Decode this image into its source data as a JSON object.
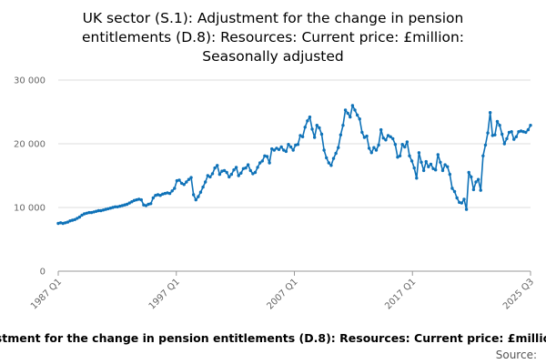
{
  "title_lines": [
    "UK sector (S.1): Adjustment for the change in pension",
    "entitlements (D.8): Resources: Current price: £million:",
    "Seasonally adjusted"
  ],
  "footer": {
    "xlabel": "stment for the change in pension entitlements (D.8): Resources: Current price: £millio",
    "source": "Source:"
  },
  "colors": {
    "line": "#0f72b8",
    "grid": "#dcdcdc",
    "axis": "#999999"
  },
  "chart_data": {
    "type": "line",
    "title": "UK sector (S.1): Adjustment for the change in pension entitlements (D.8): Resources: Current price: £million: Seasonally adjusted",
    "x_ticks": [
      "1987 Q1",
      "1997 Q1",
      "2007 Q1",
      "2017 Q1",
      "2025 Q3"
    ],
    "y_ticks": [
      "0",
      "10 000",
      "20 000",
      "30 000"
    ],
    "ylim": [
      0,
      30000
    ],
    "grid": true,
    "legend": "none",
    "values": [
      7500,
      7600,
      7500,
      7600,
      7700,
      7900,
      8000,
      8100,
      8300,
      8500,
      8800,
      9000,
      9100,
      9200,
      9200,
      9300,
      9400,
      9500,
      9500,
      9600,
      9700,
      9800,
      9900,
      10000,
      10100,
      10100,
      10200,
      10300,
      10400,
      10500,
      10700,
      10900,
      11100,
      11200,
      11300,
      11200,
      10400,
      10300,
      10500,
      10600,
      11500,
      11900,
      12000,
      11900,
      12100,
      12200,
      12300,
      12200,
      12600,
      13000,
      14200,
      14300,
      13800,
      13600,
      14000,
      14400,
      14700,
      12000,
      11200,
      11700,
      12400,
      13200,
      14000,
      15000,
      14800,
      15300,
      16200,
      16600,
      15200,
      15700,
      15800,
      15500,
      14800,
      15200,
      15900,
      16300,
      15000,
      15400,
      16100,
      16200,
      16700,
      15800,
      15300,
      15500,
      16300,
      17000,
      17300,
      18100,
      18000,
      17000,
      19200,
      19000,
      19300,
      19100,
      19500,
      19000,
      18800,
      19900,
      19500,
      19000,
      19800,
      19900,
      21300,
      21100,
      22600,
      23600,
      24200,
      22300,
      21000,
      22900,
      22500,
      21500,
      19000,
      17800,
      17000,
      16600,
      17700,
      18500,
      19400,
      21400,
      22900,
      25300,
      24800,
      24200,
      26000,
      25300,
      24500,
      23900,
      21800,
      21000,
      21200,
      19300,
      18600,
      19400,
      19000,
      19800,
      22200,
      20900,
      20600,
      21300,
      21100,
      20800,
      19900,
      17900,
      18100,
      19900,
      19500,
      20300,
      18100,
      17300,
      16200,
      14600,
      18600,
      17100,
      15800,
      17200,
      16400,
      16800,
      16100,
      15900,
      18300,
      17100,
      15800,
      16700,
      16400,
      15200,
      13000,
      12500,
      11500,
      10800,
      10700,
      11300,
      9700,
      15500,
      14800,
      12800,
      14000,
      14400,
      12700,
      18100,
      19800,
      21700,
      24900,
      21300,
      21400,
      23500,
      22900,
      21500,
      20000,
      20800,
      21800,
      21900,
      20700,
      21100,
      21900,
      22000,
      21900,
      21800,
      22200,
      22900
    ]
  }
}
